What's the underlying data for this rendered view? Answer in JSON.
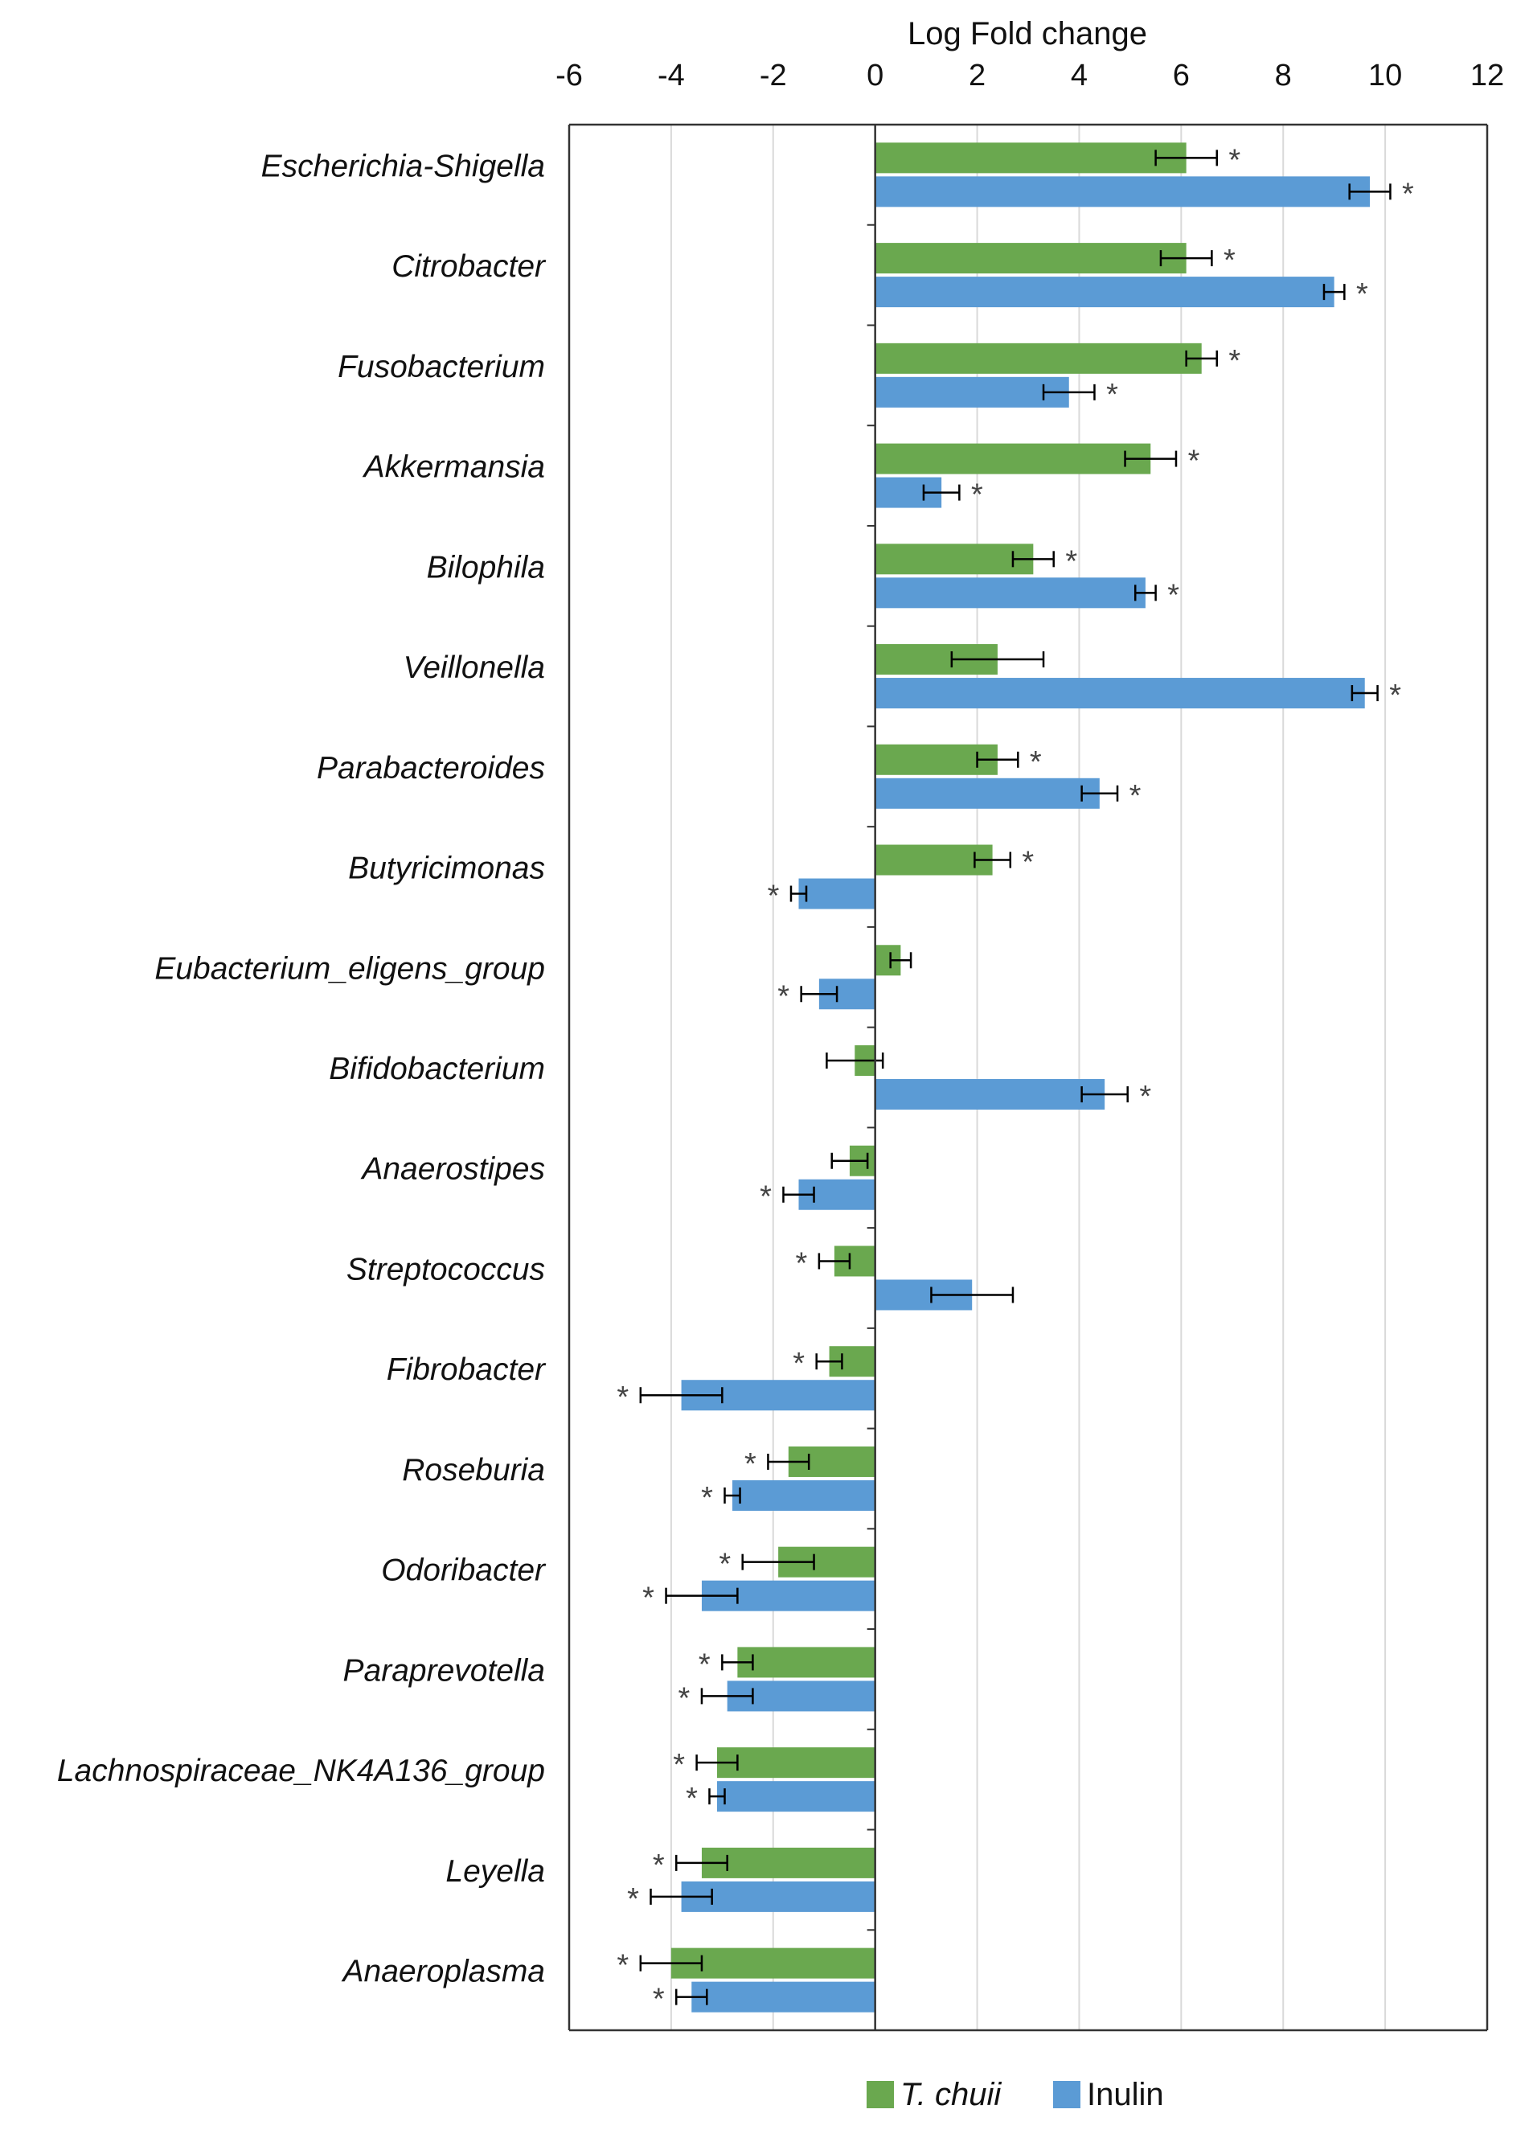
{
  "chart_data": {
    "type": "bar",
    "orientation": "horizontal",
    "title": "Log Fold change",
    "xlabel": "Log Fold change",
    "ylabel": "",
    "xlim": [
      -6,
      12
    ],
    "xticks": [
      -6,
      -4,
      -2,
      0,
      2,
      4,
      6,
      8,
      10,
      12
    ],
    "grid": true,
    "legend_position": "bottom",
    "categories": [
      "Escherichia-Shigella",
      "Citrobacter",
      "Fusobacterium",
      "Akkermansia",
      "Bilophila",
      "Veillonella",
      "Parabacteroides",
      "Butyricimonas",
      "Eubacterium_eligens_group",
      "Bifidobacterium",
      "Anaerostipes",
      "Streptococcus",
      "Fibrobacter",
      "Roseburia",
      "Odoribacter",
      "Paraprevotella",
      "Lachnospiraceae_NK4A136_group",
      "Leyella",
      "Anaeroplasma"
    ],
    "series": [
      {
        "name": "T. chuii",
        "italic": true,
        "color": "#6aa84f",
        "values": [
          6.1,
          6.1,
          6.4,
          5.4,
          3.1,
          2.4,
          2.4,
          2.3,
          0.5,
          -0.4,
          -0.5,
          -0.8,
          -0.9,
          -1.7,
          -1.9,
          -2.7,
          -3.1,
          -3.4,
          -4.0
        ],
        "errors": [
          0.6,
          0.5,
          0.3,
          0.5,
          0.4,
          0.9,
          0.4,
          0.35,
          0.2,
          0.55,
          0.35,
          0.3,
          0.25,
          0.4,
          0.7,
          0.3,
          0.4,
          0.5,
          0.6
        ],
        "significant": [
          true,
          true,
          true,
          true,
          true,
          false,
          true,
          true,
          false,
          false,
          false,
          true,
          true,
          true,
          true,
          true,
          true,
          true,
          true
        ]
      },
      {
        "name": "Inulin",
        "italic": false,
        "color": "#5b9bd5",
        "values": [
          9.7,
          9.0,
          3.8,
          1.3,
          5.3,
          9.6,
          4.4,
          -1.5,
          -1.1,
          4.5,
          -1.5,
          1.9,
          -3.8,
          -2.8,
          -3.4,
          -2.9,
          -3.1,
          -3.8,
          -3.6
        ],
        "errors": [
          0.4,
          0.2,
          0.5,
          0.35,
          0.2,
          0.25,
          0.35,
          0.15,
          0.35,
          0.45,
          0.3,
          0.8,
          0.8,
          0.15,
          0.7,
          0.5,
          0.15,
          0.6,
          0.3
        ],
        "significant": [
          true,
          true,
          true,
          true,
          true,
          true,
          true,
          true,
          true,
          true,
          true,
          false,
          true,
          true,
          true,
          true,
          true,
          true,
          true
        ]
      }
    ],
    "significance_marker": "*"
  }
}
